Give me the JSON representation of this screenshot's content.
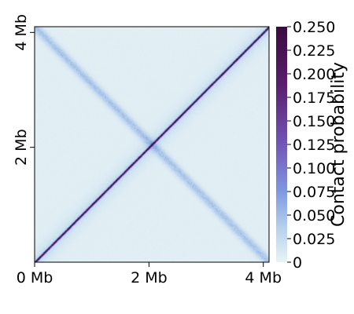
{
  "chart_data": {
    "type": "heatmap",
    "title": "",
    "x_ticks": [
      "0 Mb",
      "2 Mb",
      "4 Mb"
    ],
    "y_ticks": [
      "2 Mb",
      "4 Mb"
    ],
    "x_range_mb": [
      0,
      4.1
    ],
    "y_range_mb": [
      0,
      4.1
    ],
    "colorbar": {
      "label": "Contact probability",
      "range": [
        0,
        0.25
      ],
      "ticks": [
        "0",
        "0.025",
        "0.050",
        "0.075",
        "0.100",
        "0.125",
        "0.150",
        "0.175",
        "0.200",
        "0.225",
        "0.250"
      ],
      "colors": [
        "#e8f4f6",
        "#b4d0ec",
        "#7f98e0",
        "#7256b8",
        "#5a1f6e",
        "#3a0a3f"
      ]
    },
    "features": {
      "main_diagonal": "strong contacts along x = y (~0.25 at the diagonal)",
      "anti_diagonal": "weaker contacts along x + y = 4.1 Mb (~0.04)",
      "background": "~0.005"
    },
    "grid": false,
    "legend": "colorbar right"
  }
}
